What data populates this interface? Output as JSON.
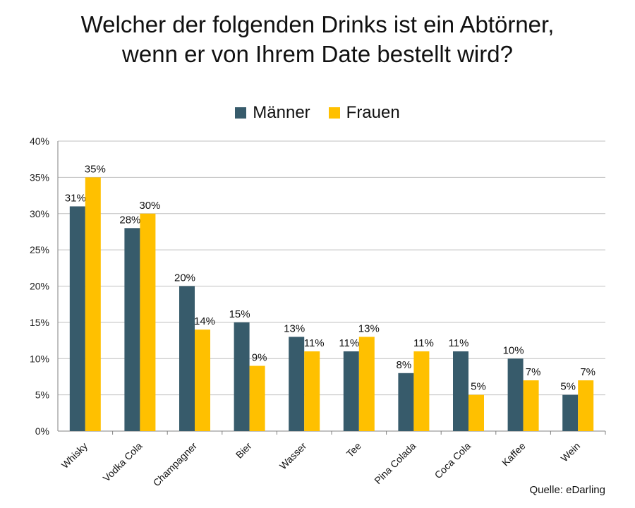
{
  "title_line1": "Welcher der folgenden Drinks ist ein Abtörner,",
  "title_line2": "wenn er von Ihrem Date bestellt wird?",
  "source": "Quelle: eDarling",
  "colors": {
    "maenner": "#375b6b",
    "frauen": "#ffc000",
    "grid": "#bfbfbf",
    "axis": "#808080"
  },
  "chart_data": {
    "type": "bar",
    "title": "Welcher der folgenden Drinks ist ein Abtörner, wenn er von Ihrem Date bestellt wird?",
    "categories": [
      "Whisky",
      "Vodka Cola",
      "Champagner",
      "Bier",
      "Wasser",
      "Tee",
      "Pina Colada",
      "Coca Cola",
      "Kaffee",
      "Wein"
    ],
    "series": [
      {
        "name": "Männer",
        "values": [
          31,
          28,
          20,
          15,
          13,
          11,
          8,
          11,
          10,
          5
        ]
      },
      {
        "name": "Frauen",
        "values": [
          35,
          30,
          14,
          9,
          11,
          13,
          11,
          5,
          7,
          7
        ]
      }
    ],
    "ylim": [
      0,
      40
    ],
    "yticks": [
      0,
      5,
      10,
      15,
      20,
      25,
      30,
      35,
      40
    ],
    "ytick_labels": [
      "0%",
      "5%",
      "10%",
      "15%",
      "20%",
      "25%",
      "30%",
      "35%",
      "40%"
    ],
    "value_suffix": "%",
    "grid": true,
    "legend": "top-center"
  }
}
